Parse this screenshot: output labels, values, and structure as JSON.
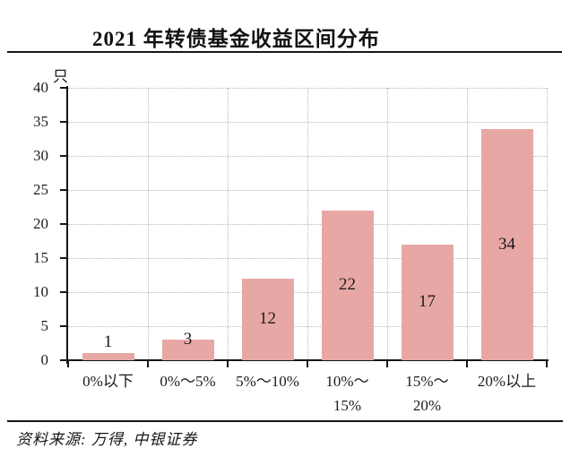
{
  "title": "2021 年转债基金收益区间分布",
  "source": "资料来源: 万得, 中银证券",
  "chart_data": {
    "type": "bar",
    "title": "2021 年转债基金收益区间分布",
    "unit_label": "只",
    "categories": [
      "0%以下",
      "0%～5%",
      "5%～10%",
      "10%～\n15%",
      "15%～\n20%",
      "20%以上"
    ],
    "values": [
      1,
      3,
      12,
      22,
      17,
      34
    ],
    "xlabel": "",
    "ylabel": "只",
    "ylim": [
      0,
      40
    ],
    "ytick_step": 5,
    "yticks": [
      0,
      5,
      10,
      15,
      20,
      25,
      30,
      35,
      40
    ],
    "grid": "dotted horizontal and vertical gridlines, grid on",
    "legend": "none",
    "bar_color": "#e7a8a5",
    "axis_color": "#161616",
    "gridline_color": "#b8b8b8",
    "value_label_color": "#1b1b1b"
  }
}
